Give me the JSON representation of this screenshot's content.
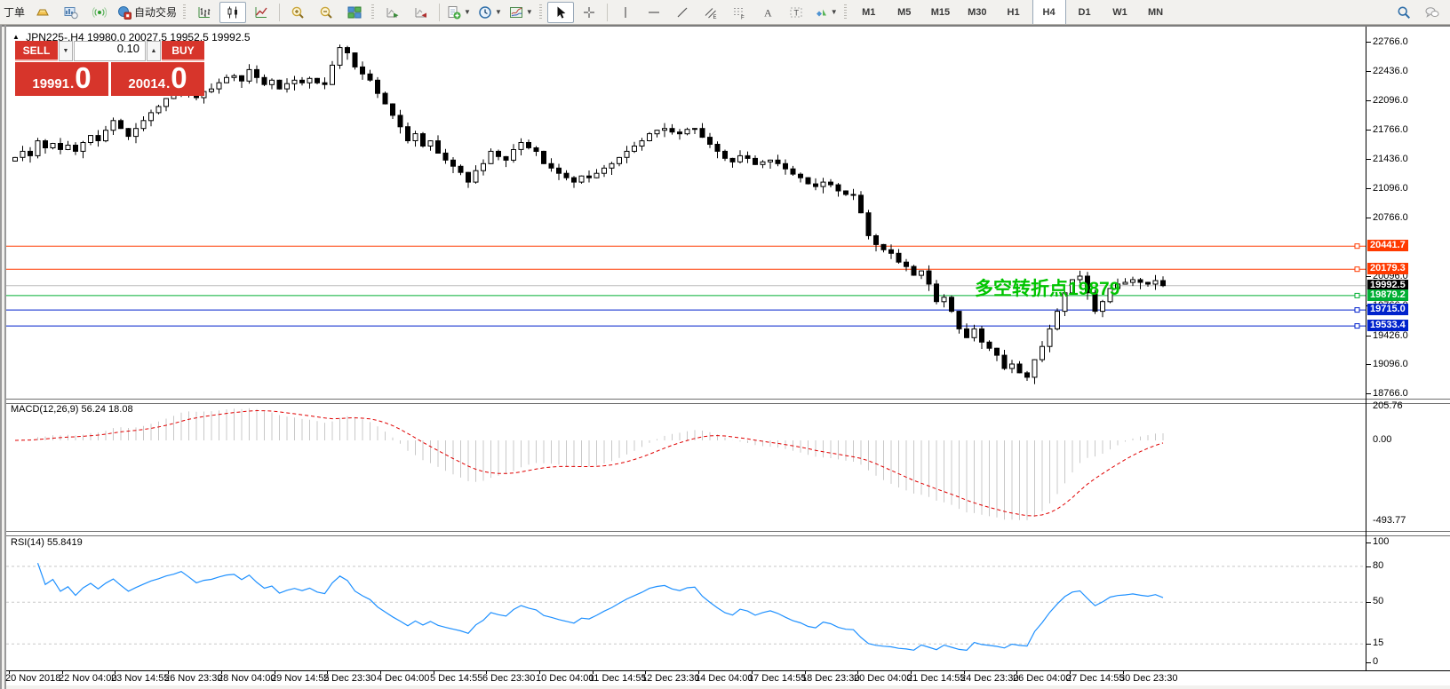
{
  "toolbar": {
    "groups": [
      {
        "sep": "none",
        "items": [
          {
            "name": "new-order-button",
            "icon": "none",
            "label": "丁单"
          },
          {
            "name": "gold-ingot-icon",
            "icon": "ingot"
          },
          {
            "name": "chart-window-icon",
            "icon": "chartwin"
          },
          {
            "name": "signals-icon",
            "icon": "signal"
          },
          {
            "name": "autotrading-button",
            "icon": "autotrade",
            "label": "自动交易"
          }
        ]
      },
      {
        "sep": "grip",
        "items": [
          {
            "name": "bar-chart-button",
            "icon": "barchart"
          },
          {
            "name": "candlestick-chart-button",
            "icon": "candles",
            "selected": true
          },
          {
            "name": "line-chart-button",
            "icon": "linechart"
          }
        ]
      },
      {
        "sep": "line",
        "items": [
          {
            "name": "zoom-in-button",
            "icon": "zoomin"
          },
          {
            "name": "zoom-out-button",
            "icon": "zoomout"
          },
          {
            "name": "tile-windows-button",
            "icon": "tile"
          }
        ]
      },
      {
        "sep": "grip",
        "items": [
          {
            "name": "auto-scroll-button",
            "icon": "autoscroll"
          },
          {
            "name": "chart-shift-button",
            "icon": "chartshift"
          }
        ]
      },
      {
        "sep": "line",
        "items": [
          {
            "name": "indicators-add-button",
            "icon": "addind",
            "dropdown": true
          },
          {
            "name": "periods-clock-button",
            "icon": "clock",
            "dropdown": true
          },
          {
            "name": "templates-button",
            "icon": "template",
            "dropdown": true
          }
        ]
      },
      {
        "sep": "grip",
        "items": [
          {
            "name": "cursor-button",
            "icon": "cursor",
            "selected": true
          },
          {
            "name": "crosshair-button",
            "icon": "crosshair"
          }
        ]
      },
      {
        "sep": "line",
        "items": [
          {
            "name": "vertical-line-button",
            "icon": "vline"
          },
          {
            "name": "horizontal-line-button",
            "icon": "hline"
          },
          {
            "name": "trendline-button",
            "icon": "trend"
          },
          {
            "name": "equidistant-channel-button",
            "icon": "channel"
          },
          {
            "name": "fibonacci-button",
            "icon": "fibo"
          },
          {
            "name": "text-button",
            "icon": "texta"
          },
          {
            "name": "text-label-button",
            "icon": "labelt"
          },
          {
            "name": "arrows-shapes-button",
            "icon": "shapes",
            "dropdown": true
          }
        ]
      }
    ],
    "timeframes": {
      "labels": [
        "M1",
        "M5",
        "M15",
        "M30",
        "H1",
        "H4",
        "D1",
        "W1",
        "MN"
      ],
      "selected": "H4"
    },
    "right_icons": [
      {
        "name": "search-icon",
        "icon": "search"
      },
      {
        "name": "chat-icon",
        "icon": "chat"
      }
    ]
  },
  "chart": {
    "title": {
      "symbol_period": "JPN225-,H4",
      "ohlc": "19980.0 20027.5 19952.5 19992.5"
    },
    "trade_widget": {
      "sell_label": "SELL",
      "buy_label": "BUY",
      "volume": "0.10",
      "sell_price_main": "19991",
      "sell_price_big": "0",
      "buy_price_main": "20014",
      "buy_price_big": "0"
    },
    "annotation": {
      "text": "多空转折点19879",
      "color": "#00c400"
    },
    "y_axis_ticks": [
      "22766.0",
      "22436.0",
      "22096.0",
      "21766.0",
      "21436.0",
      "21096.0",
      "20766.0",
      "20096.0",
      "19766.0",
      "19426.0",
      "19096.0",
      "18766.0"
    ],
    "hlines": [
      {
        "price": 20441.7,
        "label": "20441.7",
        "color": "#ff3a00",
        "handle": true
      },
      {
        "price": 20179.3,
        "label": "20179.3",
        "color": "#ff3a00",
        "handle": true
      },
      {
        "price": 19992.5,
        "label": "19992.5",
        "color": "#bcbcbc",
        "label_bg": "#000000",
        "handle": false
      },
      {
        "price": 19879.2,
        "label": "19879.2",
        "color": "#00af33",
        "handle": true
      },
      {
        "price": 19715.0,
        "label": "19715.0",
        "color": "#0022cc",
        "handle": true
      },
      {
        "price": 19533.4,
        "label": "19533.4",
        "color": "#0022cc",
        "handle": true
      }
    ],
    "x_axis_labels": [
      "20 Nov 2018",
      "22 Nov 04:00",
      "23 Nov 14:55",
      "26 Nov 23:30",
      "28 Nov 04:00",
      "29 Nov 14:55",
      "2 Dec 23:30",
      "4 Dec 04:00",
      "5 Dec 14:55",
      "6 Dec 23:30",
      "10 Dec 04:00",
      "11 Dec 14:55",
      "12 Dec 23:30",
      "14 Dec 04:00",
      "17 Dec 14:55",
      "18 Dec 23:30",
      "20 Dec 04:00",
      "21 Dec 14:55",
      "24 Dec 23:30",
      "26 Dec 04:00",
      "27 Dec 14:55",
      "30 Dec 23:30"
    ]
  },
  "chart_data": {
    "type": "candlestick",
    "symbol": "JPN225-",
    "period": "H4",
    "price_axis_range": [
      18766.0,
      22766.0
    ],
    "closes": [
      21450,
      21520,
      21470,
      21640,
      21560,
      21610,
      21540,
      21590,
      21520,
      21620,
      21700,
      21640,
      21760,
      21870,
      21780,
      21690,
      21780,
      21870,
      21960,
      22030,
      22120,
      22180,
      22280,
      22210,
      22130,
      22200,
      22230,
      22300,
      22360,
      22380,
      22320,
      22450,
      22360,
      22280,
      22330,
      22230,
      22290,
      22330,
      22300,
      22350,
      22300,
      22280,
      22500,
      22700,
      22640,
      22480,
      22400,
      22330,
      22180,
      22060,
      21930,
      21800,
      21640,
      21720,
      21580,
      21640,
      21500,
      21420,
      21350,
      21280,
      21170,
      21300,
      21380,
      21520,
      21460,
      21420,
      21540,
      21620,
      21560,
      21520,
      21380,
      21330,
      21270,
      21220,
      21170,
      21240,
      21220,
      21270,
      21330,
      21380,
      21450,
      21520,
      21580,
      21640,
      21720,
      21760,
      21780,
      21740,
      21720,
      21770,
      21780,
      21680,
      21600,
      21520,
      21440,
      21400,
      21470,
      21440,
      21370,
      21400,
      21420,
      21380,
      21320,
      21260,
      21220,
      21150,
      21120,
      21170,
      21140,
      21070,
      21030,
      21020,
      20820,
      20560,
      20460,
      20400,
      20360,
      20260,
      20210,
      20110,
      20160,
      20010,
      19810,
      19860,
      19700,
      19500,
      19400,
      19500,
      19350,
      19280,
      19200,
      19050,
      19100,
      19000,
      18950,
      19150,
      19300,
      19500,
      19700,
      19910,
      20060,
      20100,
      19910,
      19700,
      19810,
      19960,
      20010,
      20030,
      20060,
      20030,
      20010,
      20050,
      19992.5
    ]
  },
  "macd": {
    "label": "MACD(12,26,9) 56.24 18.08",
    "params": {
      "fast": 12,
      "slow": 26,
      "signal": 9
    },
    "axis_labels": [
      "205.76",
      "0.00",
      "-493.77"
    ],
    "histogram_color": "#c8c8c8",
    "signal_color": "#e00000"
  },
  "rsi": {
    "label": "RSI(14) 55.8419",
    "period": 14,
    "axis_labels": [
      "100",
      "80",
      "50",
      "15",
      "0"
    ],
    "levels": [
      80,
      50,
      15
    ],
    "line_color": "#1e90ff"
  }
}
